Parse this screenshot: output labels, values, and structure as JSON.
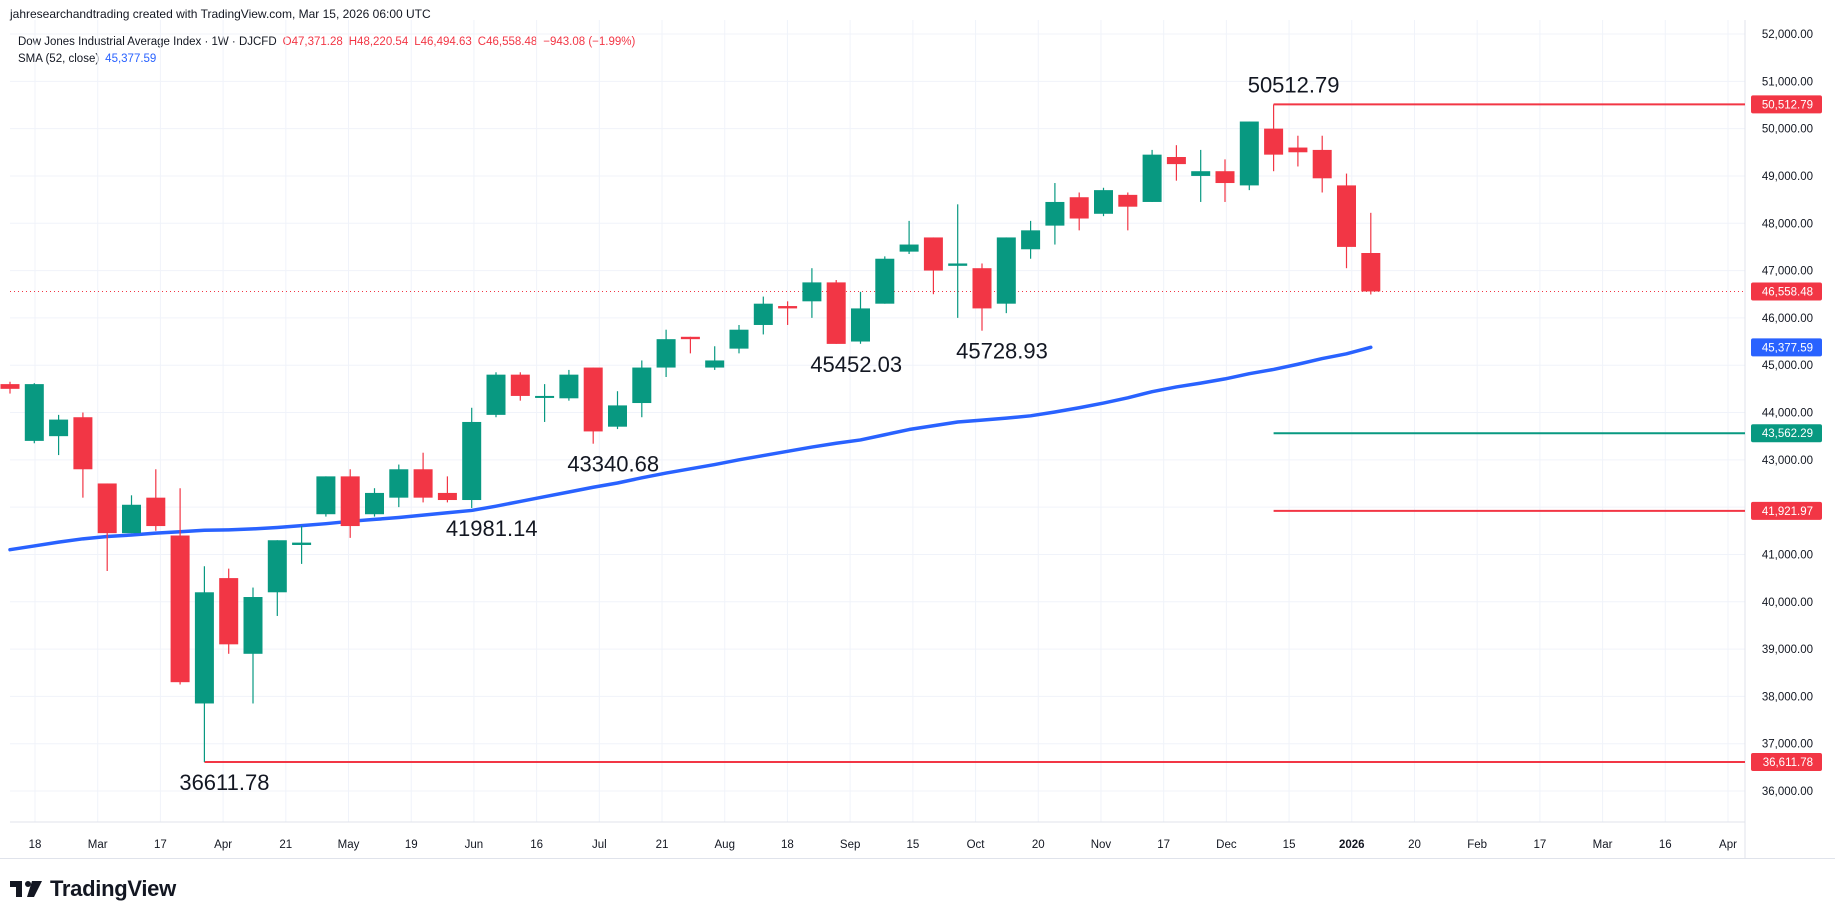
{
  "credit": "jahresearchandtrading created with TradingView.com, Mar 15, 2026 06:00 UTC",
  "legend": {
    "symbol": "Dow Jones Industrial Average Index · 1W · DJCFD",
    "open": "O47,371.28",
    "high": "H48,220.54",
    "low": "L46,494.63",
    "close": "C46,558.48",
    "change": "−943.08 (−1.99%)",
    "sma_label": "SMA (52, close)",
    "sma_value": "45,377.59"
  },
  "brand": "TradingView",
  "colors": {
    "up": "#089981",
    "down": "#f23645",
    "sma": "#2962ff",
    "support_line": "#f23645",
    "mid_line": "#089981"
  },
  "chart_data": {
    "type": "candlestick",
    "ylim": [
      35200,
      52300
    ],
    "y_ticks": [
      "36,000.00",
      "37,000.00",
      "38,000.00",
      "39,000.00",
      "40,000.00",
      "41,000.00",
      "42,000.00",
      "43,000.00",
      "44,000.00",
      "45,000.00",
      "46,000.00",
      "47,000.00",
      "48,000.00",
      "49,000.00",
      "50,000.00",
      "51,000.00",
      "52,000.00"
    ],
    "x_labels": [
      "18",
      "Mar",
      "17",
      "Apr",
      "21",
      "May",
      "19",
      "Jun",
      "16",
      "Jul",
      "21",
      "Aug",
      "18",
      "Sep",
      "15",
      "Oct",
      "20",
      "Nov",
      "17",
      "Dec",
      "15",
      "2026",
      "20",
      "Feb",
      "17",
      "Mar",
      "16",
      "Apr"
    ],
    "candles": [
      {
        "o": 44600,
        "h": 44650,
        "l": 44400,
        "c": 44500
      },
      {
        "o": 43400,
        "h": 44620,
        "l": 43350,
        "c": 44600
      },
      {
        "o": 43500,
        "h": 43950,
        "l": 43100,
        "c": 43850
      },
      {
        "o": 43900,
        "h": 44000,
        "l": 42200,
        "c": 42800
      },
      {
        "o": 42500,
        "h": 42500,
        "l": 40650,
        "c": 41450
      },
      {
        "o": 41450,
        "h": 42250,
        "l": 41450,
        "c": 42050
      },
      {
        "o": 42200,
        "h": 42800,
        "l": 41500,
        "c": 41600
      },
      {
        "o": 41400,
        "h": 42400,
        "l": 38250,
        "c": 38300
      },
      {
        "o": 37850,
        "h": 40750,
        "l": 36611.78,
        "c": 40200
      },
      {
        "o": 40500,
        "h": 40700,
        "l": 38900,
        "c": 39100
      },
      {
        "o": 38900,
        "h": 40300,
        "l": 37850,
        "c": 40100
      },
      {
        "o": 40200,
        "h": 41300,
        "l": 39700,
        "c": 41300
      },
      {
        "o": 41200,
        "h": 41600,
        "l": 40800,
        "c": 41250
      },
      {
        "o": 41850,
        "h": 42650,
        "l": 41800,
        "c": 42650
      },
      {
        "o": 42650,
        "h": 42800,
        "l": 41350,
        "c": 41600
      },
      {
        "o": 41850,
        "h": 42400,
        "l": 41800,
        "c": 42300
      },
      {
        "o": 42200,
        "h": 42900,
        "l": 42000,
        "c": 42800
      },
      {
        "o": 42800,
        "h": 43150,
        "l": 42100,
        "c": 42200
      },
      {
        "o": 42300,
        "h": 42650,
        "l": 42100,
        "c": 42150
      },
      {
        "o": 42150,
        "h": 44100,
        "l": 41981.14,
        "c": 43800
      },
      {
        "o": 43950,
        "h": 44850,
        "l": 43900,
        "c": 44800
      },
      {
        "o": 44800,
        "h": 44850,
        "l": 44250,
        "c": 44350
      },
      {
        "o": 44350,
        "h": 44600,
        "l": 43800,
        "c": 44350
      },
      {
        "o": 44300,
        "h": 44900,
        "l": 44250,
        "c": 44800
      },
      {
        "o": 44950,
        "h": 44950,
        "l": 43340.68,
        "c": 43600
      },
      {
        "o": 43700,
        "h": 44450,
        "l": 43650,
        "c": 44150
      },
      {
        "o": 44200,
        "h": 45100,
        "l": 43900,
        "c": 44950
      },
      {
        "o": 44950,
        "h": 45750,
        "l": 44750,
        "c": 45550
      },
      {
        "o": 45600,
        "h": 45600,
        "l": 45250,
        "c": 45550
      },
      {
        "o": 44950,
        "h": 45400,
        "l": 44900,
        "c": 45100
      },
      {
        "o": 45350,
        "h": 45850,
        "l": 45250,
        "c": 45750
      },
      {
        "o": 45850,
        "h": 46450,
        "l": 45650,
        "c": 46300
      },
      {
        "o": 46250,
        "h": 46350,
        "l": 45850,
        "c": 46200
      },
      {
        "o": 46350,
        "h": 47050,
        "l": 46000,
        "c": 46750
      },
      {
        "o": 46750,
        "h": 46800,
        "l": 45452.03,
        "c": 45450
      },
      {
        "o": 45500,
        "h": 46550,
        "l": 45452,
        "c": 46200
      },
      {
        "o": 46300,
        "h": 47300,
        "l": 46300,
        "c": 47250
      },
      {
        "o": 47400,
        "h": 48050,
        "l": 47350,
        "c": 47550
      },
      {
        "o": 47700,
        "h": 47700,
        "l": 46500,
        "c": 47000
      },
      {
        "o": 47100,
        "h": 48400,
        "l": 46000,
        "c": 47150
      },
      {
        "o": 47050,
        "h": 47150,
        "l": 45728.93,
        "c": 46200
      },
      {
        "o": 46300,
        "h": 47700,
        "l": 46100,
        "c": 47700
      },
      {
        "o": 47450,
        "h": 48050,
        "l": 47250,
        "c": 47850
      },
      {
        "o": 47950,
        "h": 48850,
        "l": 47550,
        "c": 48450
      },
      {
        "o": 48550,
        "h": 48650,
        "l": 47850,
        "c": 48100
      },
      {
        "o": 48200,
        "h": 48750,
        "l": 48150,
        "c": 48700
      },
      {
        "o": 48600,
        "h": 48650,
        "l": 47850,
        "c": 48350
      },
      {
        "o": 48450,
        "h": 49550,
        "l": 48450,
        "c": 49450
      },
      {
        "o": 49400,
        "h": 49650,
        "l": 48900,
        "c": 49250
      },
      {
        "o": 49000,
        "h": 49550,
        "l": 48450,
        "c": 49100
      },
      {
        "o": 49100,
        "h": 49350,
        "l": 48450,
        "c": 48850
      },
      {
        "o": 48800,
        "h": 50150,
        "l": 48700,
        "c": 50150
      },
      {
        "o": 50000,
        "h": 50512.79,
        "l": 49100,
        "c": 49450
      },
      {
        "o": 49600,
        "h": 49850,
        "l": 49200,
        "c": 49500
      },
      {
        "o": 49550,
        "h": 49850,
        "l": 48650,
        "c": 48950
      },
      {
        "o": 48800,
        "h": 49050,
        "l": 47050,
        "c": 47500
      },
      {
        "o": 47371.28,
        "h": 48220.54,
        "l": 46494.63,
        "c": 46558.48
      }
    ],
    "sma": [
      41100,
      41180,
      41260,
      41330,
      41380,
      41410,
      41450,
      41480,
      41510,
      41520,
      41540,
      41570,
      41610,
      41650,
      41700,
      41740,
      41780,
      41830,
      41880,
      41930,
      42020,
      42120,
      42220,
      42320,
      42420,
      42510,
      42620,
      42720,
      42810,
      42900,
      43000,
      43090,
      43180,
      43270,
      43350,
      43420,
      43530,
      43640,
      43720,
      43800,
      43840,
      43880,
      43930,
      44010,
      44100,
      44200,
      44310,
      44440,
      44540,
      44620,
      44710,
      44820,
      44910,
      45020,
      45140,
      45240,
      45377.59
    ],
    "annotations": [
      "36611.78",
      "41981.14",
      "43340.68",
      "45452.03",
      "45728.93",
      "50512.79"
    ],
    "price_tags": [
      {
        "label": "50,512.79",
        "value": 50512.79,
        "color": "#f23645"
      },
      {
        "label": "46,558.48",
        "value": 46558.48,
        "color": "#f23645"
      },
      {
        "label": "45,377.59",
        "value": 45377.59,
        "color": "#2962ff"
      },
      {
        "label": "43,562.29",
        "value": 43562.29,
        "color": "#089981"
      },
      {
        "label": "41,921.97",
        "value": 41921.97,
        "color": "#f23645"
      },
      {
        "label": "36,611.78",
        "value": 36611.78,
        "color": "#f23645"
      }
    ],
    "horizontal_lines": [
      {
        "value": 50512.79,
        "color": "#f23645",
        "from_candle": 52
      },
      {
        "value": 43562.29,
        "color": "#089981",
        "from_candle": 52
      },
      {
        "value": 41921.97,
        "color": "#f23645",
        "from_candle": 52
      },
      {
        "value": 36611.78,
        "color": "#f23645",
        "from_candle": 8
      }
    ],
    "last_price": 46558.48,
    "grid": true
  }
}
